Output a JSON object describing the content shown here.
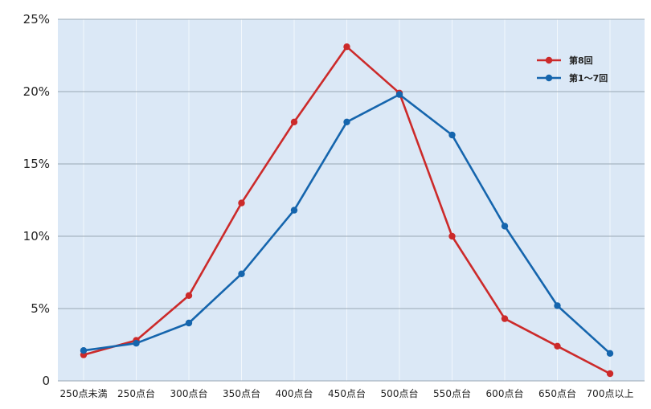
{
  "chart_data": {
    "type": "line",
    "categories": [
      "250点未満",
      "250点台",
      "300点台",
      "350点台",
      "400点台",
      "450点台",
      "500点台",
      "550点台",
      "600点台",
      "650点台",
      "700点以上"
    ],
    "y_tick_labels": [
      "0",
      "5%",
      "10%",
      "15%",
      "20%",
      "25%"
    ],
    "ylim": [
      0,
      25
    ],
    "grid": true,
    "legend_position": "top-right",
    "series": [
      {
        "name": "第8回",
        "color": "#cc2a2a",
        "values": [
          1.8,
          2.8,
          5.9,
          12.3,
          17.9,
          23.1,
          19.9,
          10.0,
          4.3,
          2.4,
          0.5
        ]
      },
      {
        "name": "第1～7回",
        "color": "#1565ad",
        "values": [
          2.1,
          2.6,
          4.0,
          7.4,
          11.8,
          17.9,
          19.8,
          17.0,
          10.7,
          5.2,
          1.9
        ]
      }
    ],
    "plot_background": "#dbe8f6",
    "grid_color": "#9aa7b4"
  }
}
